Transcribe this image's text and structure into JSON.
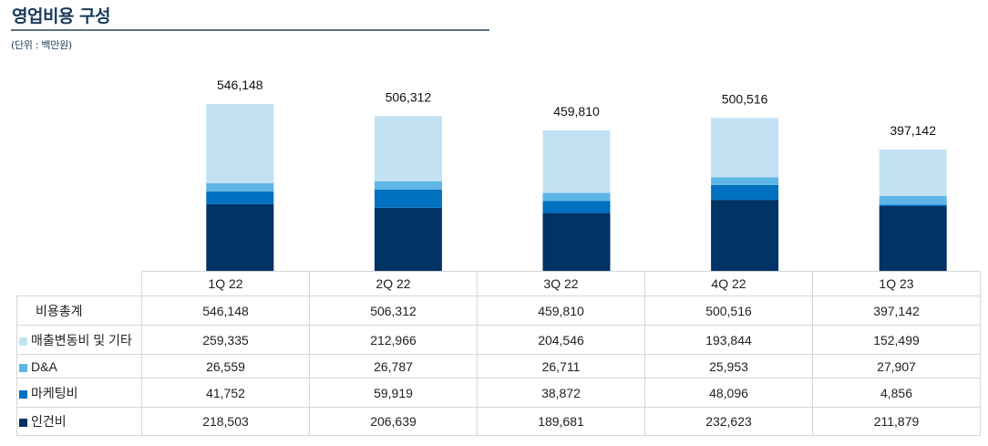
{
  "header": {
    "title": "영업비용 구성",
    "unit": "(단위 : 백만원)"
  },
  "chart_data": {
    "type": "bar",
    "stacked": true,
    "title": "영업비용 구성",
    "subtitle": "(단위 : 백만원)",
    "xlabel": "",
    "ylabel": "",
    "categories": [
      "1Q 22",
      "2Q 22",
      "3Q 22",
      "4Q 22",
      "1Q 23"
    ],
    "totals_label": "비용총계",
    "totals": [
      546148,
      506312,
      459810,
      500516,
      397142
    ],
    "totals_display": [
      "546,148",
      "506,312",
      "459,810",
      "500,516",
      "397,142"
    ],
    "series": [
      {
        "name": "인건비",
        "color": "#003366",
        "values": [
          218503,
          206639,
          189681,
          232623,
          211879
        ],
        "display": [
          "218,503",
          "206,639",
          "189,681",
          "232,623",
          "211,879"
        ]
      },
      {
        "name": "마케팅비",
        "color": "#0070c0",
        "values": [
          41752,
          59919,
          38872,
          48096,
          4856
        ],
        "display": [
          "41,752",
          "59,919",
          "38,872",
          "48,096",
          "4,856"
        ]
      },
      {
        "name": "D&A",
        "color": "#5eb6e6",
        "values": [
          26559,
          26787,
          26711,
          25953,
          27907
        ],
        "display": [
          "26,559",
          "26,787",
          "26,711",
          "25,953",
          "27,907"
        ]
      },
      {
        "name": "매출변동비 및 기타",
        "color": "#c2e2f4",
        "values": [
          259335,
          212966,
          204546,
          193844,
          152499
        ],
        "display": [
          "259,335",
          "212,966",
          "204,546",
          "193,844",
          "152,499"
        ]
      }
    ],
    "ylim": [
      0,
      546148
    ],
    "grid": false,
    "legend": "table-left"
  }
}
